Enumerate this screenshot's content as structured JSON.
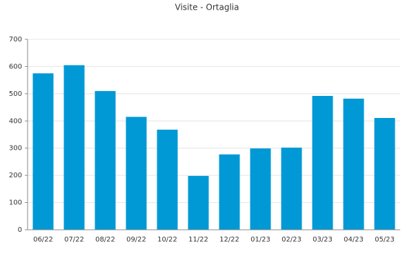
{
  "chart_data": {
    "type": "bar",
    "title": "Visite - Ortaglia",
    "categories": [
      "06/22",
      "07/22",
      "08/22",
      "09/22",
      "10/22",
      "11/22",
      "12/22",
      "01/23",
      "02/23",
      "03/23",
      "04/23",
      "05/23"
    ],
    "values": [
      575,
      605,
      510,
      415,
      368,
      198,
      277,
      299,
      302,
      492,
      482,
      411
    ],
    "color": "#0099d6",
    "ylim": [
      0,
      700
    ],
    "yticks": [
      0,
      100,
      200,
      300,
      400,
      500,
      600,
      700
    ],
    "grid": true
  }
}
